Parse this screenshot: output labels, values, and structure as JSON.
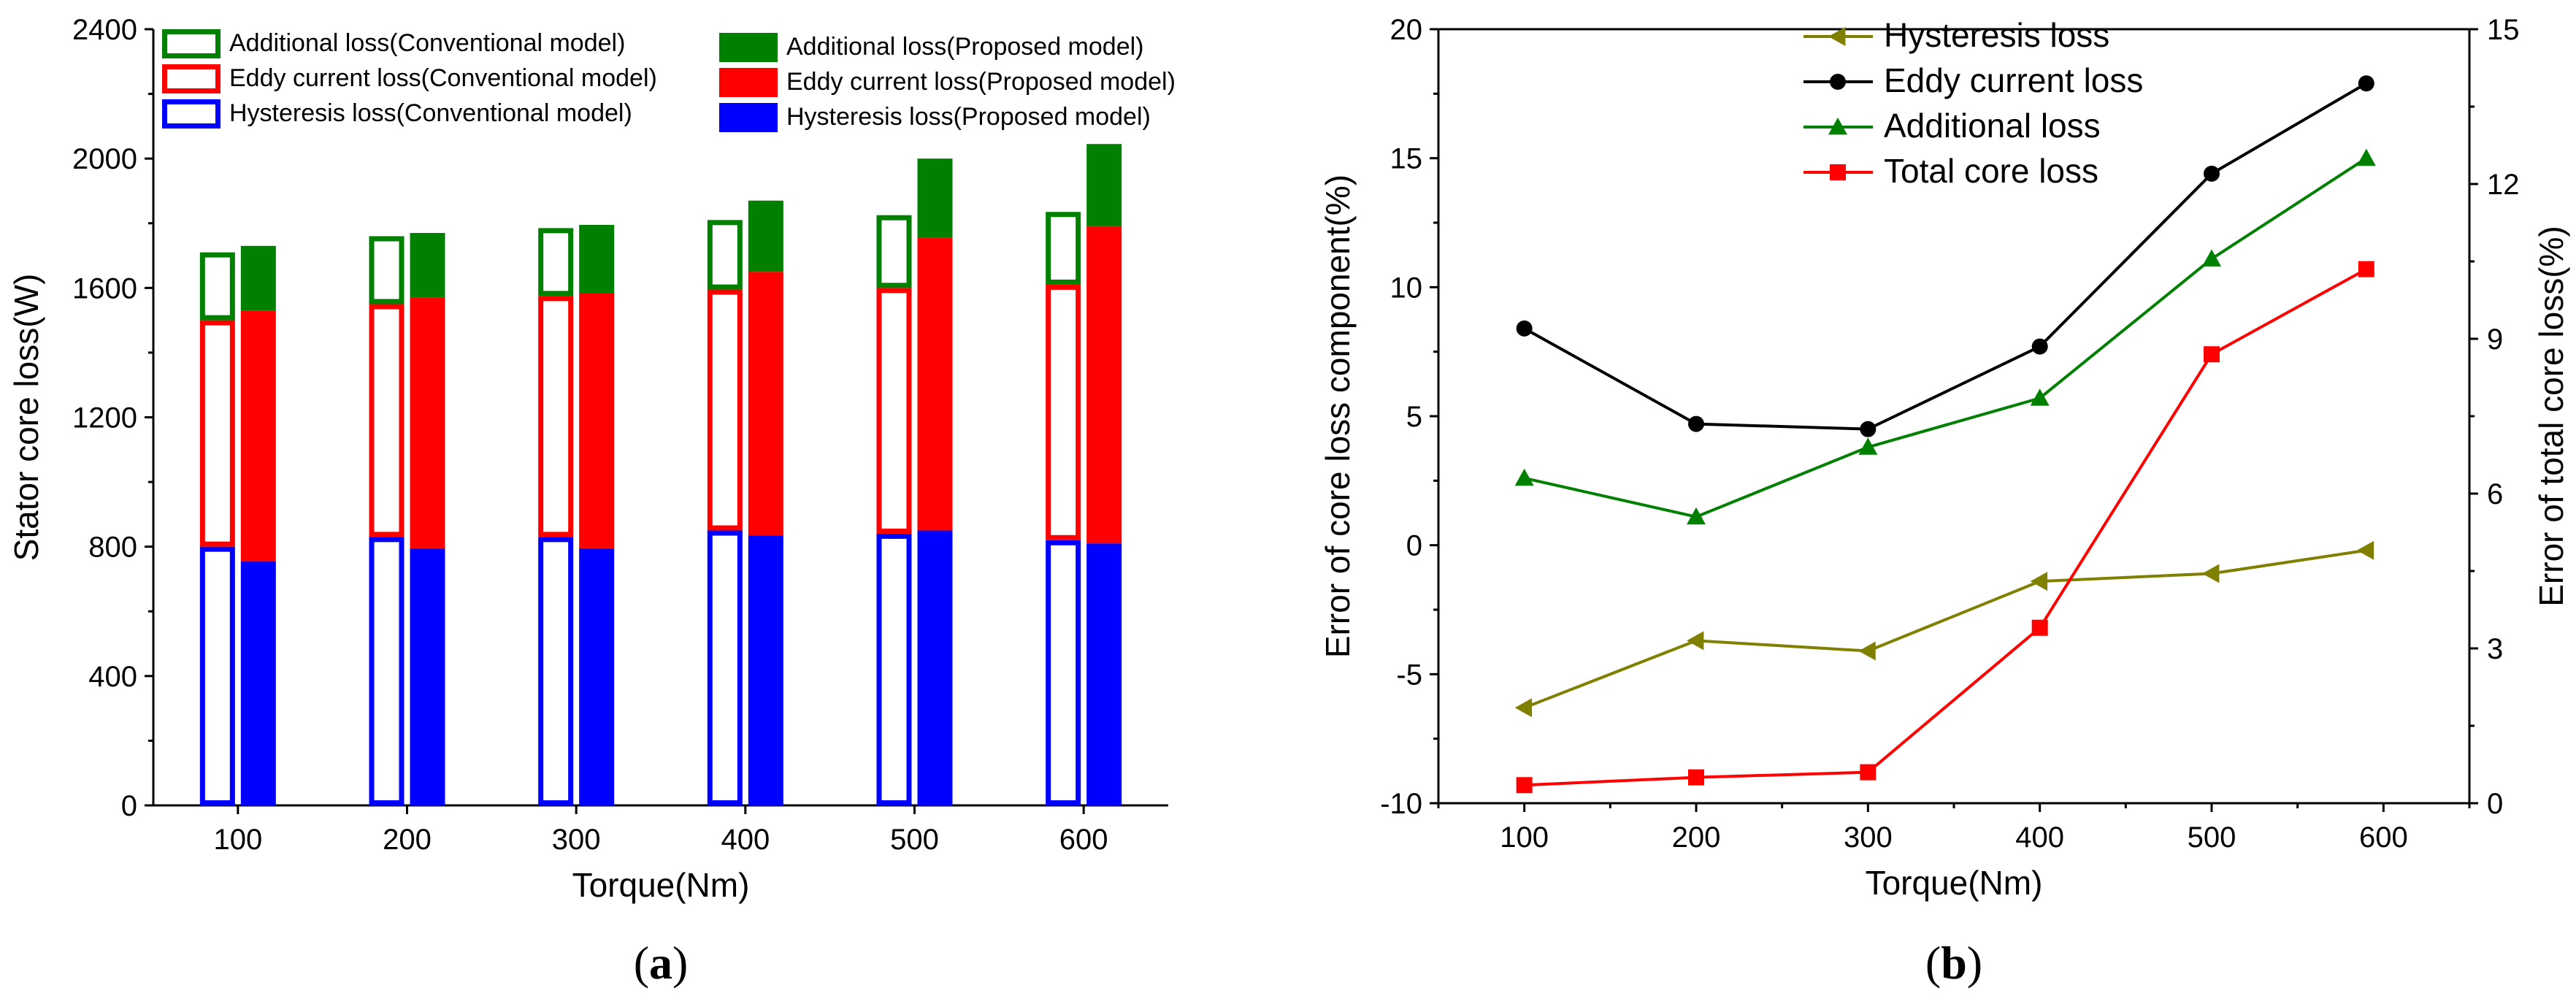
{
  "chart_data": [
    {
      "panel": "(a)",
      "panel_letter": "a",
      "type": "bar",
      "subtype": "stacked-grouped",
      "xlabel": "Torque(Nm)",
      "ylabel": "Stator core loss(W)",
      "categories": [
        "100",
        "200",
        "300",
        "400",
        "500",
        "600"
      ],
      "ylim": [
        0,
        2400
      ],
      "yticks": [
        0,
        400,
        800,
        1200,
        1600,
        2000,
        2400
      ],
      "groups": [
        {
          "name": "Conventional model",
          "style": "outline",
          "stacks": [
            {
              "name": "Hysteresis loss(Conventional model)",
              "color": "#0000ff",
              "values": [
                800,
                830,
                830,
                850,
                840,
                820
              ]
            },
            {
              "name": "Eddy current loss(Conventional model)",
              "color": "#ff0000",
              "values": [
                700,
                720,
                745,
                745,
                760,
                790
              ]
            },
            {
              "name": "Additional loss(Conventional model)",
              "color": "#008000",
              "values": [
                210,
                210,
                210,
                215,
                225,
                225
              ]
            }
          ]
        },
        {
          "name": "Proposed model",
          "style": "filled",
          "stacks": [
            {
              "name": "Hysteresis loss(Proposed model)",
              "color": "#0000ff",
              "values": [
                755,
                795,
                795,
                835,
                850,
                810
              ]
            },
            {
              "name": "Eddy current loss(Proposed model)",
              "color": "#ff0000",
              "values": [
                775,
                775,
                790,
                815,
                905,
                980
              ]
            },
            {
              "name": "Additional loss(Proposed model)",
              "color": "#008000",
              "values": [
                200,
                200,
                210,
                220,
                245,
                255
              ]
            }
          ]
        }
      ],
      "legend": {
        "left_column": [
          "Additional loss(Conventional model)",
          "Eddy current loss(Conventional model)",
          "Hysteresis loss(Conventional model)"
        ],
        "right_column": [
          "Additional loss(Proposed model)",
          "Eddy current loss(Proposed model)",
          "Hysteresis loss(Proposed model)"
        ]
      }
    },
    {
      "panel": "(b)",
      "panel_letter": "b",
      "type": "line",
      "xlabel": "Torque(Nm)",
      "ylabel": "Error of core loss component(%)",
      "ylabel_right": "Error of total core loss(%)",
      "xlim": [
        50,
        650
      ],
      "xticks": [
        100,
        200,
        300,
        400,
        500,
        600
      ],
      "ylim": [
        -10,
        20
      ],
      "yticks": [
        -10,
        -5,
        0,
        5,
        10,
        15,
        20
      ],
      "ylim_right": [
        0,
        15
      ],
      "yticks_right": [
        0,
        3,
        6,
        9,
        12,
        15
      ],
      "series": [
        {
          "name": "Hysteresis loss",
          "color": "#808000",
          "marker": "triangle-left",
          "axis": "left",
          "x": [
            100,
            200,
            300,
            400,
            500,
            590
          ],
          "values": [
            -6.3,
            -3.7,
            -4.1,
            -1.4,
            -1.1,
            -0.2
          ]
        },
        {
          "name": "Eddy current loss",
          "color": "#000000",
          "marker": "circle",
          "axis": "left",
          "x": [
            100,
            200,
            300,
            400,
            500,
            590
          ],
          "values": [
            8.4,
            4.7,
            4.5,
            7.7,
            14.4,
            17.9
          ]
        },
        {
          "name": "Additional loss",
          "color": "#008000",
          "marker": "triangle-up",
          "axis": "left",
          "x": [
            100,
            200,
            300,
            400,
            500,
            590
          ],
          "values": [
            2.6,
            1.1,
            3.8,
            5.7,
            11.1,
            15.0
          ]
        },
        {
          "name": "Total core loss",
          "color": "#ff0000",
          "marker": "square",
          "axis": "right",
          "x": [
            100,
            200,
            300,
            400,
            500,
            590
          ],
          "values": [
            0.35,
            0.5,
            0.6,
            3.4,
            8.7,
            10.35
          ]
        }
      ],
      "legend_position": "top-center"
    }
  ]
}
